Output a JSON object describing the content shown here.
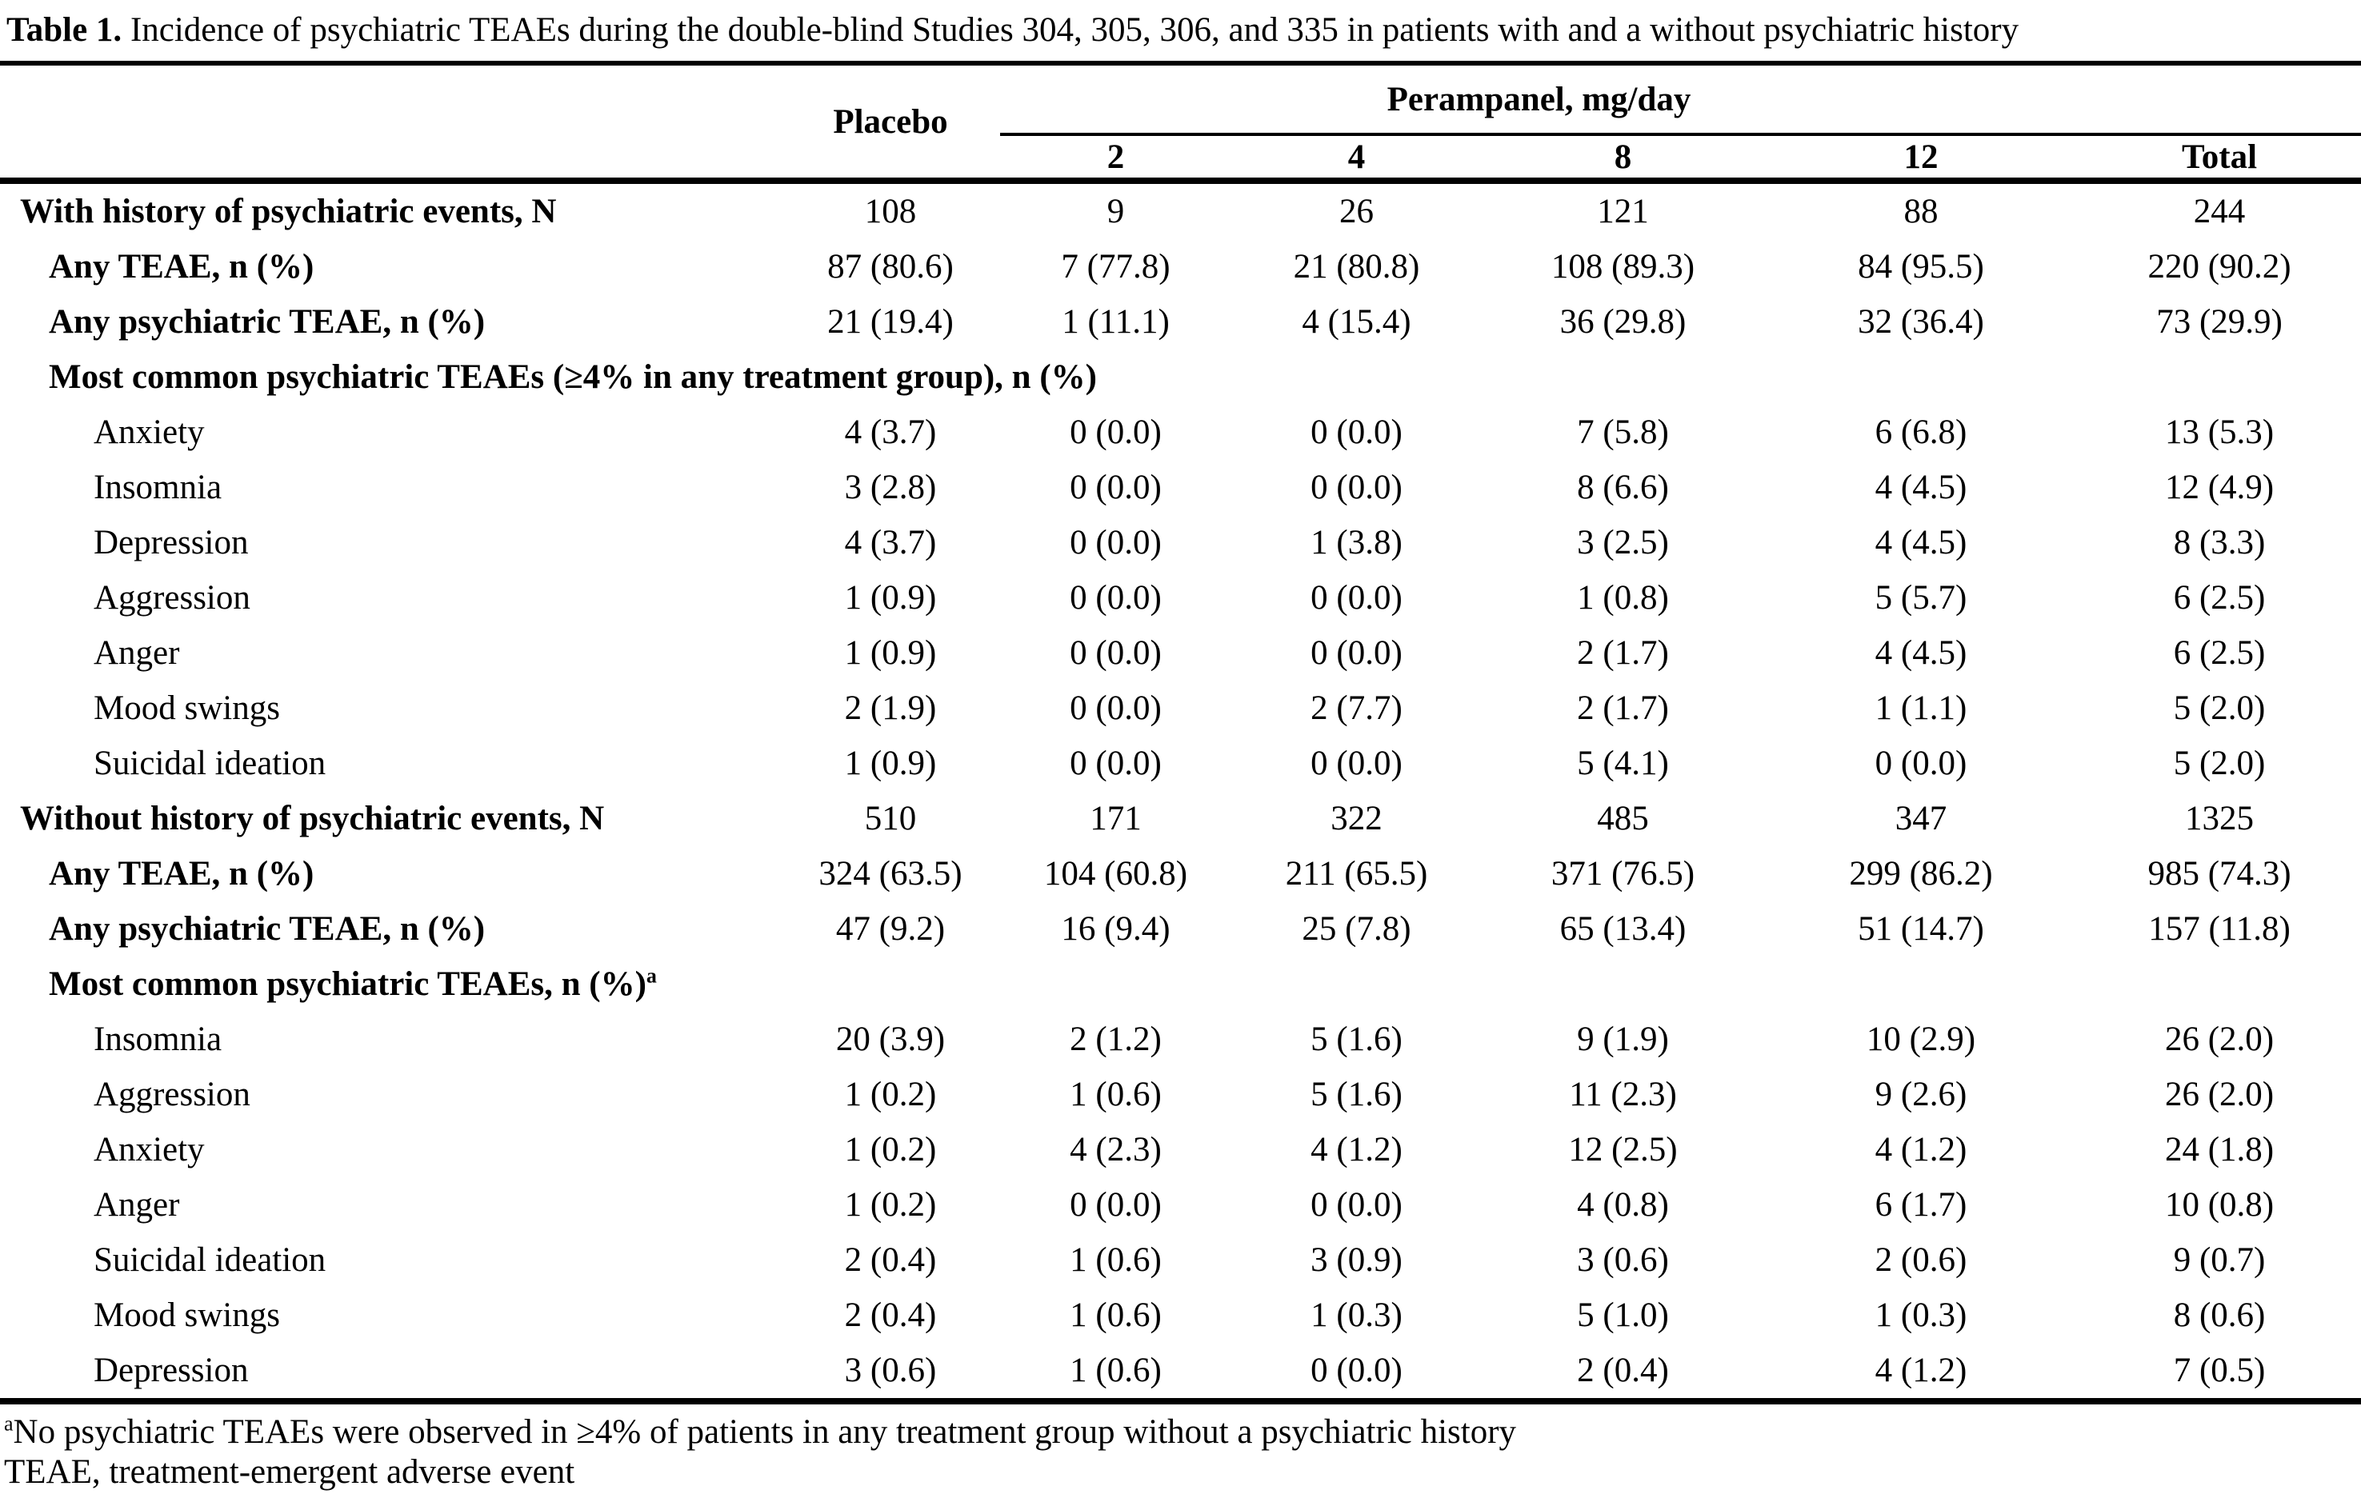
{
  "colors": {
    "text": "#000000",
    "background": "#ffffff",
    "rules": "#000000"
  },
  "table": {
    "title_label": "Table 1.",
    "title_text": " Incidence of psychiatric TEAEs during the double-blind Studies 304, 305, 306, and 335 in patients with and a without psychiatric history",
    "header": {
      "placebo": "Placebo",
      "perampanel_group": "Perampanel, mg/day",
      "dose_columns": [
        "2",
        "4",
        "8",
        "12"
      ],
      "total": "Total"
    },
    "rows": [
      {
        "label": "With history of psychiatric events, N",
        "indent": 0,
        "bold": true,
        "values": [
          "108",
          "9",
          "26",
          "121",
          "88",
          "244"
        ]
      },
      {
        "label": "Any TEAE, n (%)",
        "indent": 1,
        "bold": true,
        "values": [
          "87 (80.6)",
          "7 (77.8)",
          "21 (80.8)",
          "108 (89.3)",
          "84 (95.5)",
          "220 (90.2)"
        ]
      },
      {
        "label": "Any psychiatric TEAE, n (%)",
        "indent": 1,
        "bold": true,
        "values": [
          "21 (19.4)",
          "1 (11.1)",
          "4 (15.4)",
          "36 (29.8)",
          "32 (36.4)",
          "73 (29.9)"
        ]
      },
      {
        "label": "Most common psychiatric TEAEs (≥4% in any treatment group), n (%)",
        "indent": 1,
        "bold": true,
        "values": []
      },
      {
        "label": "Anxiety",
        "indent": 2,
        "bold": false,
        "values": [
          "4 (3.7)",
          "0 (0.0)",
          "0 (0.0)",
          "7 (5.8)",
          "6 (6.8)",
          "13 (5.3)"
        ]
      },
      {
        "label": "Insomnia",
        "indent": 2,
        "bold": false,
        "values": [
          "3 (2.8)",
          "0 (0.0)",
          "0 (0.0)",
          "8 (6.6)",
          "4 (4.5)",
          "12 (4.9)"
        ]
      },
      {
        "label": "Depression",
        "indent": 2,
        "bold": false,
        "values": [
          "4 (3.7)",
          "0 (0.0)",
          "1 (3.8)",
          "3 (2.5)",
          "4 (4.5)",
          "8 (3.3)"
        ]
      },
      {
        "label": "Aggression",
        "indent": 2,
        "bold": false,
        "values": [
          "1 (0.9)",
          "0 (0.0)",
          "0 (0.0)",
          "1 (0.8)",
          "5 (5.7)",
          "6 (2.5)"
        ]
      },
      {
        "label": "Anger",
        "indent": 2,
        "bold": false,
        "values": [
          "1 (0.9)",
          "0 (0.0)",
          "0 (0.0)",
          "2 (1.7)",
          "4 (4.5)",
          "6 (2.5)"
        ]
      },
      {
        "label": "Mood swings",
        "indent": 2,
        "bold": false,
        "values": [
          "2 (1.9)",
          "0 (0.0)",
          "2 (7.7)",
          "2 (1.7)",
          "1 (1.1)",
          "5 (2.0)"
        ]
      },
      {
        "label": "Suicidal ideation",
        "indent": 2,
        "bold": false,
        "values": [
          "1 (0.9)",
          "0 (0.0)",
          "0 (0.0)",
          "5 (4.1)",
          "0 (0.0)",
          "5 (2.0)"
        ]
      },
      {
        "label": "Without history of psychiatric events, N",
        "indent": 0,
        "bold": true,
        "values": [
          "510",
          "171",
          "322",
          "485",
          "347",
          "1325"
        ]
      },
      {
        "label": "Any TEAE, n (%)",
        "indent": 1,
        "bold": true,
        "values": [
          "324 (63.5)",
          "104 (60.8)",
          "211 (65.5)",
          "371 (76.5)",
          "299 (86.2)",
          "985 (74.3)"
        ]
      },
      {
        "label": "Any psychiatric TEAE, n (%)",
        "indent": 1,
        "bold": true,
        "values": [
          "47 (9.2)",
          "16 (9.4)",
          "25 (7.8)",
          "65 (13.4)",
          "51 (14.7)",
          "157 (11.8)"
        ]
      },
      {
        "label": "Most common psychiatric TEAEs, n (%)",
        "label_superscript": "a",
        "indent": 1,
        "bold": true,
        "values": []
      },
      {
        "label": "Insomnia",
        "indent": 2,
        "bold": false,
        "values": [
          "20 (3.9)",
          "2 (1.2)",
          "5 (1.6)",
          "9 (1.9)",
          "10 (2.9)",
          "26 (2.0)"
        ]
      },
      {
        "label": "Aggression",
        "indent": 2,
        "bold": false,
        "values": [
          "1 (0.2)",
          "1 (0.6)",
          "5 (1.6)",
          "11 (2.3)",
          "9 (2.6)",
          "26 (2.0)"
        ]
      },
      {
        "label": "Anxiety",
        "indent": 2,
        "bold": false,
        "values": [
          "1 (0.2)",
          "4 (2.3)",
          "4 (1.2)",
          "12 (2.5)",
          "4 (1.2)",
          "24 (1.8)"
        ]
      },
      {
        "label": "Anger",
        "indent": 2,
        "bold": false,
        "values": [
          "1 (0.2)",
          "0 (0.0)",
          "0 (0.0)",
          "4 (0.8)",
          "6 (1.7)",
          "10 (0.8)"
        ]
      },
      {
        "label": "Suicidal ideation",
        "indent": 2,
        "bold": false,
        "values": [
          "2 (0.4)",
          "1 (0.6)",
          "3 (0.9)",
          "3 (0.6)",
          "2 (0.6)",
          "9 (0.7)"
        ]
      },
      {
        "label": "Mood swings",
        "indent": 2,
        "bold": false,
        "values": [
          "2 (0.4)",
          "1 (0.6)",
          "1 (0.3)",
          "5 (1.0)",
          "1 (0.3)",
          "8 (0.6)"
        ]
      },
      {
        "label": "Depression",
        "indent": 2,
        "bold": false,
        "values": [
          "3 (0.6)",
          "1 (0.6)",
          "0 (0.0)",
          "2 (0.4)",
          "4 (1.2)",
          "7 (0.5)"
        ]
      }
    ],
    "footnotes": [
      {
        "superscript": "a",
        "text": "No psychiatric TEAEs were observed in ≥4% of patients in any treatment group without a psychiatric history"
      },
      {
        "superscript": "",
        "text": "TEAE, treatment-emergent adverse event"
      }
    ]
  }
}
